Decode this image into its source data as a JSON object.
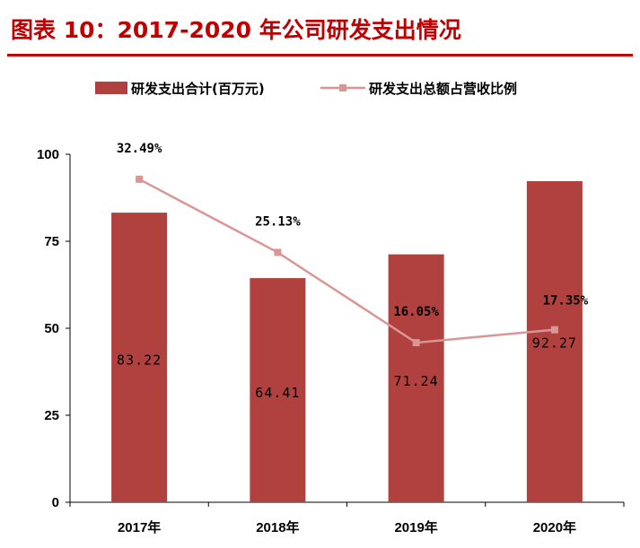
{
  "title": "图表 10：2017-2020 年公司研发支出情况",
  "colors": {
    "title": "#c00000",
    "bar": "#b0413e",
    "line": "#d99694"
  },
  "chart_data": {
    "type": "bar",
    "categories": [
      "2017年",
      "2018年",
      "2019年",
      "2020年"
    ],
    "series": [
      {
        "name": "研发支出合计(百万元)",
        "type": "bar",
        "values": [
          83.22,
          64.41,
          71.24,
          92.27
        ],
        "labels": [
          "83.22",
          "64.41",
          "71.24",
          "92.27"
        ]
      },
      {
        "name": "研发支出总额占营收比例",
        "type": "line",
        "axis": "secondary",
        "values": [
          32.49,
          25.13,
          16.05,
          17.35
        ],
        "labels": [
          "32.49%",
          "25.13%",
          "16.05%",
          "17.35%"
        ]
      }
    ],
    "yticks": [
      "0",
      "25",
      "50",
      "75",
      "100"
    ],
    "ylim": [
      0,
      100
    ],
    "y2lim": [
      0,
      35
    ],
    "legend": "top"
  }
}
